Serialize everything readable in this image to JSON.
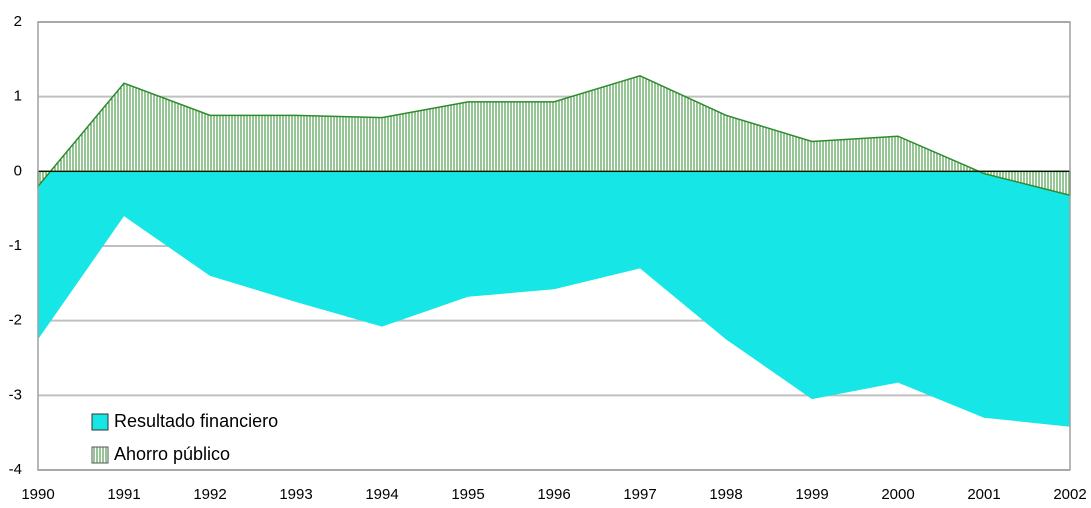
{
  "chart_data": {
    "type": "area",
    "x": [
      1990,
      1991,
      1992,
      1993,
      1994,
      1995,
      1996,
      1997,
      1998,
      1999,
      2000,
      2001,
      2002
    ],
    "series": [
      {
        "name": "Resultado financiero",
        "color": "#17e6e6",
        "values": [
          -2.25,
          -0.6,
          -1.4,
          -1.75,
          -2.08,
          -1.68,
          -1.58,
          -1.3,
          -2.25,
          -3.05,
          -2.83,
          -3.3,
          -3.42
        ]
      },
      {
        "name": "Ahorro público",
        "color": "#2e8b2e",
        "values": [
          -0.2,
          1.18,
          0.75,
          0.75,
          0.72,
          0.93,
          0.93,
          1.28,
          0.75,
          0.4,
          0.47,
          -0.03,
          -0.32
        ]
      }
    ],
    "xlim": [
      1990,
      2002
    ],
    "xticks": [
      1990,
      1991,
      1992,
      1993,
      1994,
      1995,
      1996,
      1997,
      1998,
      1999,
      2000,
      2001,
      2002
    ],
    "ylim": [
      -4,
      2
    ],
    "yticks": [
      -4,
      -3,
      -2,
      -1,
      0,
      1,
      2
    ],
    "grid": true,
    "legend": "lower-left"
  }
}
